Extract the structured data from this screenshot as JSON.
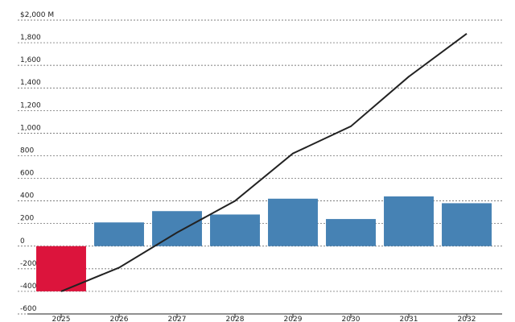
{
  "chart_data": {
    "type": "bar-line",
    "categories": [
      "2025",
      "2026",
      "2027",
      "2028",
      "2029",
      "2030",
      "2031",
      "2032"
    ],
    "series": [
      {
        "type": "bar",
        "color": "#4682b4",
        "negative_color": "#dc143c",
        "values": [
          -400,
          210,
          310,
          280,
          420,
          240,
          440,
          380
        ]
      },
      {
        "type": "line",
        "color": "#222222",
        "values": [
          -400,
          -190,
          120,
          400,
          820,
          1060,
          1500,
          1880
        ]
      }
    ],
    "ylim": [
      -600,
      2000
    ],
    "yticks": [
      -600,
      -400,
      -200,
      0,
      200,
      400,
      600,
      800,
      {
        "value": 1000,
        "label": "1,000"
      },
      {
        "value": 1200,
        "label": "1,200"
      },
      {
        "value": 1400,
        "label": "1,400"
      },
      {
        "value": 1600,
        "label": "1,600"
      },
      {
        "value": 1800,
        "label": "1,800"
      },
      {
        "value": 2000,
        "label": "$2,000 M"
      }
    ],
    "grid": true
  }
}
